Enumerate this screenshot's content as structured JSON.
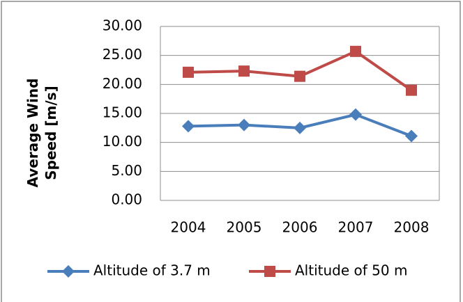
{
  "chart_data": {
    "type": "line",
    "y_label": "Average Wind Speed [m/s]",
    "categories": [
      "2004",
      "2005",
      "2006",
      "2007",
      "2008"
    ],
    "series": [
      {
        "name": "Altitude of 3.7 m",
        "color": "#4a7ebb",
        "marker": "diamond",
        "values": [
          12.8,
          13.0,
          12.5,
          14.8,
          11.1
        ]
      },
      {
        "name": "Altitude of 50 m",
        "color": "#be4b48",
        "marker": "square",
        "values": [
          22.1,
          22.3,
          21.4,
          25.7,
          19.0
        ]
      }
    ],
    "ylim": [
      0,
      30
    ],
    "yticks": [
      {
        "value": 0,
        "label": "0.00"
      },
      {
        "value": 5,
        "label": "5.00"
      },
      {
        "value": 10,
        "label": "10.00"
      },
      {
        "value": 15,
        "label": "15.00"
      },
      {
        "value": 20,
        "label": "20.00"
      },
      {
        "value": 25,
        "label": "25.00"
      },
      {
        "value": 30,
        "label": "30.00"
      }
    ],
    "grid": true,
    "legend": "bottom"
  }
}
